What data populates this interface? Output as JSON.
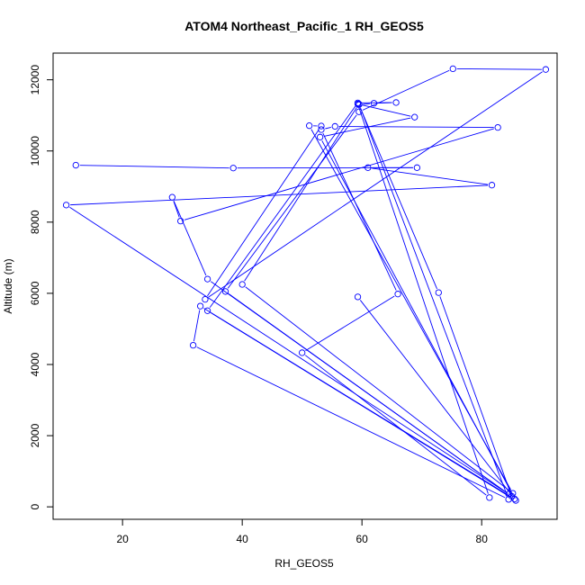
{
  "chart_data": {
    "type": "line",
    "title": "ATOM4 Northeast_Pacific_1 RH_GEOS5",
    "xlabel": "RH_GEOS5",
    "ylabel": "Altitude (m)",
    "xlim": [
      8.4,
      92.6
    ],
    "ylim": [
      -350,
      12750
    ],
    "x_ticks": [
      20,
      40,
      60,
      80
    ],
    "y_ticks": [
      0,
      2000,
      4000,
      6000,
      8000,
      10000,
      12000
    ],
    "x_tick_labels": [
      "20",
      "40",
      "60",
      "80"
    ],
    "y_tick_labels": [
      "0",
      "2000",
      "4000",
      "6000",
      "8000",
      "10000",
      "12000"
    ],
    "grid": false,
    "legend": "none",
    "marker": "open-circle",
    "color": "#0000ff",
    "series": [
      {
        "x": [
          12.2,
          38.5,
          69.2,
          61.0,
          81.7,
          10.6,
          84.5,
          34.2,
          28.3,
          29.7,
          82.7,
          55.5,
          53.2,
          66.0,
          50.0,
          81.3,
          59.3,
          68.8,
          53.0,
          85.7,
          34.2,
          59.3,
          65.7,
          62.0,
          59.5,
          72.8,
          85.0,
          37.2,
          59.5,
          75.2,
          90.7,
          33.8,
          53.2,
          51.2,
          85.2,
          40.0,
          59.5,
          84.5,
          31.8,
          33.0,
          85.5,
          59.3
        ],
        "y": [
          9600,
          9520,
          9530,
          9530,
          9040,
          8480,
          360,
          6400,
          8700,
          8030,
          10660,
          10690,
          10600,
          5980,
          4330,
          260,
          11320,
          10950,
          10390,
          180,
          5510,
          11350,
          11360,
          11340,
          11300,
          6020,
          300,
          6050,
          11100,
          12310,
          12290,
          5830,
          10700,
          10710,
          380,
          6250,
          11320,
          210,
          4540,
          5640,
          220,
          5900
        ]
      }
    ]
  }
}
